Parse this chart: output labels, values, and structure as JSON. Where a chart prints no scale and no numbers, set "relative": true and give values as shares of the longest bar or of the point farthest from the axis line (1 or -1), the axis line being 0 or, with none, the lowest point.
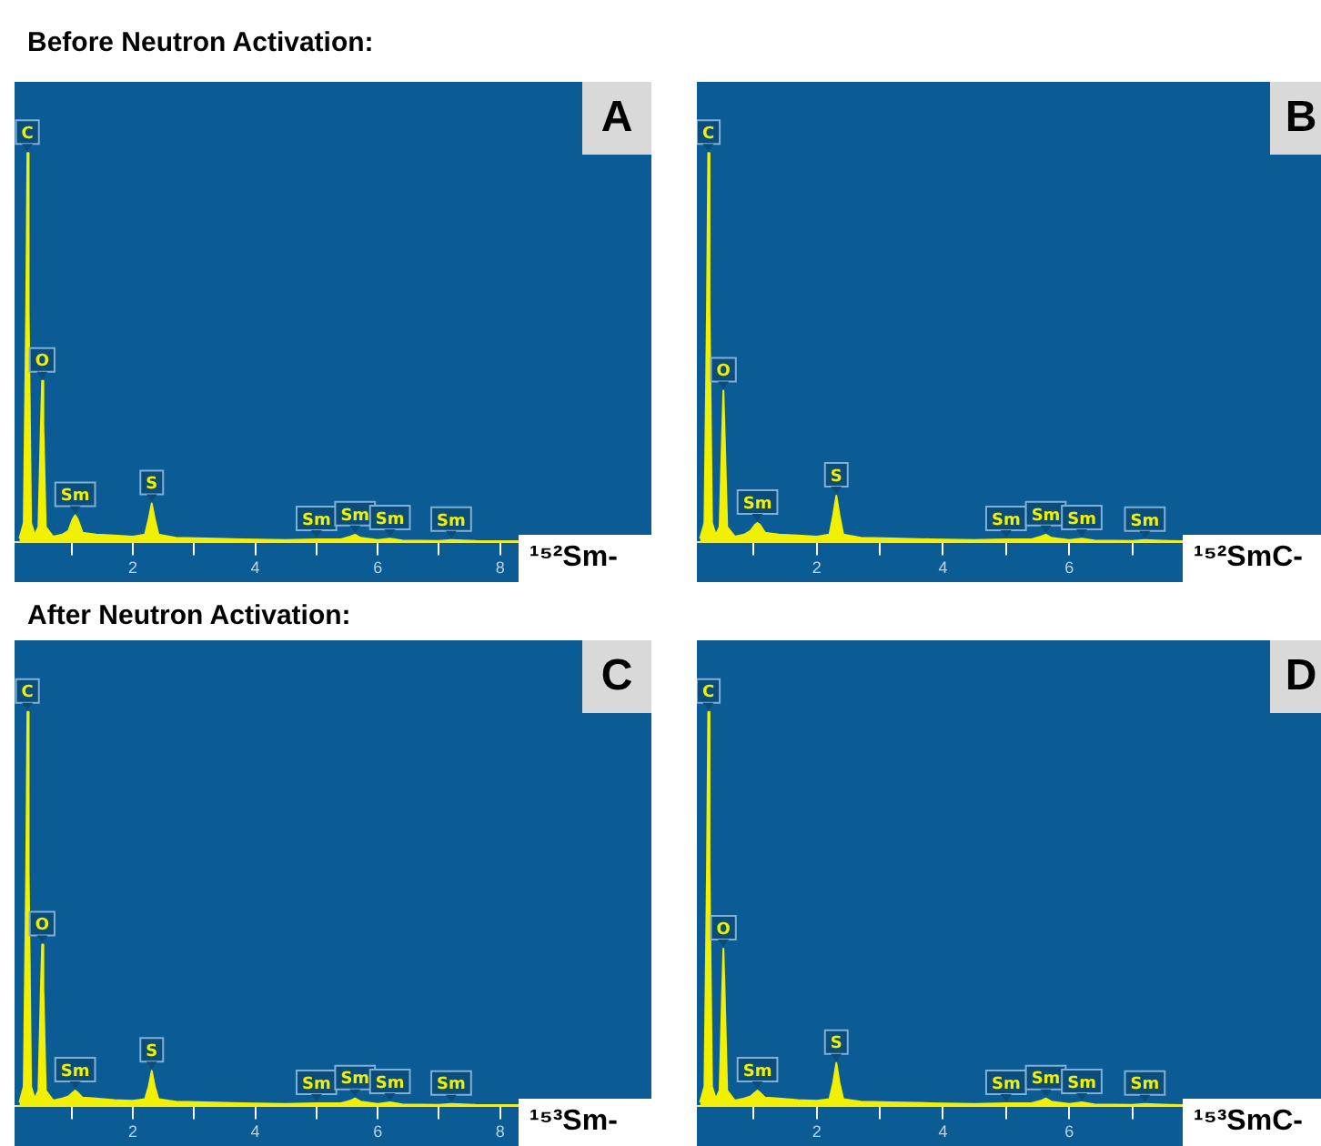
{
  "chart_data": [
    {
      "type": "area",
      "title": "Before Neutron Activation:",
      "relative": true,
      "xlim": [
        0.07,
        8.3
      ],
      "xticks": [
        {
          "value": 1,
          "label": null
        },
        2,
        {
          "value": 3,
          "label": null
        },
        4,
        {
          "value": 5,
          "label": null
        },
        6,
        {
          "value": 7,
          "label": null
        },
        8
      ],
      "x": [
        0.15,
        0.22,
        0.26,
        0.28,
        0.3,
        0.34,
        0.4,
        0.46,
        0.5,
        0.52,
        0.54,
        0.58,
        0.7,
        0.85,
        0.95,
        1.02,
        1.06,
        1.1,
        1.18,
        1.4,
        1.7,
        2.0,
        2.2,
        2.26,
        2.31,
        2.36,
        2.42,
        2.7,
        3.2,
        3.8,
        4.5,
        5.0,
        5.4,
        5.55,
        5.63,
        5.72,
        6.0,
        6.2,
        6.4,
        7.0,
        7.2,
        7.6,
        8.3
      ],
      "series": [
        {
          "color": "#f0f000",
          "values": [
            0.01,
            0.05,
            0.6,
            1,
            0.6,
            0.05,
            0.02,
            0.04,
            0.3,
            0.415,
            0.3,
            0.04,
            0.015,
            0.02,
            0.03,
            0.06,
            0.07,
            0.06,
            0.025,
            0.02,
            0.018,
            0.015,
            0.02,
            0.06,
            0.1,
            0.06,
            0.02,
            0.012,
            0.01,
            0.008,
            0.006,
            0.008,
            0.008,
            0.015,
            0.02,
            0.012,
            0.006,
            0.01,
            0.005,
            0.004,
            0.006,
            0.004,
            0.003
          ]
        }
      ],
      "annotations": [
        "A",
        "¹⁵²Sm-",
        {
          "text": "C",
          "x": 0.28,
          "y": 1
        },
        {
          "text": "O",
          "x": 0.52,
          "y": 0.415
        },
        {
          "text": "Sm",
          "x": 1.06,
          "y": 0.07
        },
        {
          "text": "S",
          "x": 2.31,
          "y": 0.1
        },
        {
          "text": "Sm",
          "x": 5.0,
          "y": 0.008
        },
        {
          "text": "Sm",
          "x": 5.63,
          "y": 0.02
        },
        {
          "text": "Sm",
          "x": 6.2,
          "y": 0.01
        },
        {
          "text": "Sm",
          "x": 7.2,
          "y": 0.006
        }
      ]
    },
    {
      "type": "area",
      "relative": true,
      "xlim": [
        0.1,
        7.8
      ],
      "xticks": [
        {
          "value": 1,
          "label": null
        },
        2,
        {
          "value": 3,
          "label": null
        },
        4,
        {
          "value": 5,
          "label": null
        },
        6,
        {
          "value": 7,
          "label": null
        }
      ],
      "x": [
        0.15,
        0.22,
        0.26,
        0.28,
        0.3,
        0.34,
        0.4,
        0.46,
        0.5,
        0.52,
        0.54,
        0.58,
        0.7,
        0.85,
        0.95,
        1.02,
        1.06,
        1.1,
        1.18,
        1.4,
        1.7,
        2.0,
        2.2,
        2.26,
        2.31,
        2.36,
        2.42,
        2.7,
        3.2,
        3.8,
        4.5,
        5.0,
        5.4,
        5.55,
        5.63,
        5.72,
        6.0,
        6.2,
        6.4,
        7.0,
        7.2,
        7.6,
        7.8
      ],
      "series": [
        {
          "color": "#f0f000",
          "values": [
            0.01,
            0.05,
            0.6,
            1,
            0.6,
            0.05,
            0.02,
            0.04,
            0.28,
            0.39,
            0.28,
            0.04,
            0.015,
            0.02,
            0.03,
            0.045,
            0.05,
            0.045,
            0.025,
            0.02,
            0.018,
            0.015,
            0.02,
            0.07,
            0.12,
            0.07,
            0.02,
            0.012,
            0.01,
            0.008,
            0.006,
            0.008,
            0.008,
            0.015,
            0.02,
            0.012,
            0.006,
            0.01,
            0.005,
            0.004,
            0.006,
            0.004,
            0.003
          ]
        }
      ],
      "annotations": [
        "B",
        "¹⁵²SmC-",
        {
          "text": "C",
          "x": 0.28,
          "y": 1
        },
        {
          "text": "O",
          "x": 0.52,
          "y": 0.39
        },
        {
          "text": "Sm",
          "x": 1.06,
          "y": 0.05
        },
        {
          "text": "S",
          "x": 2.31,
          "y": 0.12
        },
        {
          "text": "Sm",
          "x": 5.0,
          "y": 0.008
        },
        {
          "text": "Sm",
          "x": 5.63,
          "y": 0.02
        },
        {
          "text": "Sm",
          "x": 6.2,
          "y": 0.01
        },
        {
          "text": "Sm",
          "x": 7.2,
          "y": 0.006
        }
      ]
    },
    {
      "type": "area",
      "title": "After Neutron Activation:",
      "relative": true,
      "xlim": [
        0.07,
        8.3
      ],
      "xticks": [
        {
          "value": 1,
          "label": null
        },
        2,
        {
          "value": 3,
          "label": null
        },
        4,
        {
          "value": 5,
          "label": null
        },
        6,
        {
          "value": 7,
          "label": null
        },
        8
      ],
      "x": [
        0.15,
        0.22,
        0.26,
        0.28,
        0.3,
        0.34,
        0.4,
        0.46,
        0.5,
        0.52,
        0.54,
        0.58,
        0.7,
        0.85,
        0.95,
        1.02,
        1.06,
        1.1,
        1.18,
        1.4,
        1.7,
        2.0,
        2.2,
        2.26,
        2.31,
        2.36,
        2.42,
        2.7,
        3.2,
        3.8,
        4.5,
        5.0,
        5.4,
        5.55,
        5.63,
        5.72,
        6.0,
        6.2,
        6.4,
        7.0,
        7.2,
        7.6,
        8.3
      ],
      "series": [
        {
          "color": "#f0f000",
          "values": [
            0.01,
            0.05,
            0.6,
            1,
            0.6,
            0.05,
            0.02,
            0.04,
            0.3,
            0.41,
            0.3,
            0.04,
            0.015,
            0.02,
            0.025,
            0.035,
            0.04,
            0.035,
            0.022,
            0.02,
            0.016,
            0.014,
            0.018,
            0.05,
            0.09,
            0.05,
            0.018,
            0.012,
            0.01,
            0.008,
            0.006,
            0.008,
            0.008,
            0.014,
            0.02,
            0.012,
            0.006,
            0.01,
            0.005,
            0.004,
            0.006,
            0.004,
            0.003
          ]
        }
      ],
      "annotations": [
        "C",
        "¹⁵³Sm-",
        {
          "text": "C",
          "x": 0.28,
          "y": 1
        },
        {
          "text": "O",
          "x": 0.52,
          "y": 0.41
        },
        {
          "text": "Sm",
          "x": 1.06,
          "y": 0.04
        },
        {
          "text": "S",
          "x": 2.31,
          "y": 0.09
        },
        {
          "text": "Sm",
          "x": 5.0,
          "y": 0.008
        },
        {
          "text": "Sm",
          "x": 5.63,
          "y": 0.02
        },
        {
          "text": "Sm",
          "x": 6.2,
          "y": 0.01
        },
        {
          "text": "Sm",
          "x": 7.2,
          "y": 0.006
        }
      ]
    },
    {
      "type": "area",
      "relative": true,
      "xlim": [
        0.1,
        7.8
      ],
      "xticks": [
        {
          "value": 1,
          "label": null
        },
        2,
        {
          "value": 3,
          "label": null
        },
        4,
        {
          "value": 5,
          "label": null
        },
        6,
        {
          "value": 7,
          "label": null
        }
      ],
      "x": [
        0.15,
        0.22,
        0.26,
        0.28,
        0.3,
        0.34,
        0.4,
        0.46,
        0.5,
        0.52,
        0.54,
        0.58,
        0.7,
        0.85,
        0.95,
        1.02,
        1.06,
        1.1,
        1.18,
        1.4,
        1.7,
        2.0,
        2.2,
        2.26,
        2.31,
        2.36,
        2.42,
        2.7,
        3.2,
        3.8,
        4.5,
        5.0,
        5.4,
        5.55,
        5.63,
        5.72,
        6.0,
        6.2,
        6.4,
        7.0,
        7.2,
        7.6,
        7.8
      ],
      "series": [
        {
          "color": "#f0f000",
          "values": [
            0.01,
            0.05,
            0.6,
            1,
            0.6,
            0.05,
            0.02,
            0.04,
            0.29,
            0.4,
            0.29,
            0.04,
            0.015,
            0.02,
            0.025,
            0.035,
            0.04,
            0.035,
            0.022,
            0.02,
            0.016,
            0.014,
            0.018,
            0.06,
            0.11,
            0.06,
            0.018,
            0.012,
            0.01,
            0.008,
            0.006,
            0.008,
            0.008,
            0.014,
            0.02,
            0.012,
            0.006,
            0.01,
            0.005,
            0.004,
            0.006,
            0.004,
            0.003
          ]
        }
      ],
      "annotations": [
        "D",
        "¹⁵³SmC-",
        {
          "text": "C",
          "x": 0.28,
          "y": 1
        },
        {
          "text": "O",
          "x": 0.52,
          "y": 0.4
        },
        {
          "text": "Sm",
          "x": 1.06,
          "y": 0.04
        },
        {
          "text": "S",
          "x": 2.31,
          "y": 0.11
        },
        {
          "text": "Sm",
          "x": 5.0,
          "y": 0.008
        },
        {
          "text": "Sm",
          "x": 5.63,
          "y": 0.02
        },
        {
          "text": "Sm",
          "x": 6.2,
          "y": 0.01
        },
        {
          "text": "Sm",
          "x": 7.2,
          "y": 0.006
        }
      ]
    }
  ]
}
